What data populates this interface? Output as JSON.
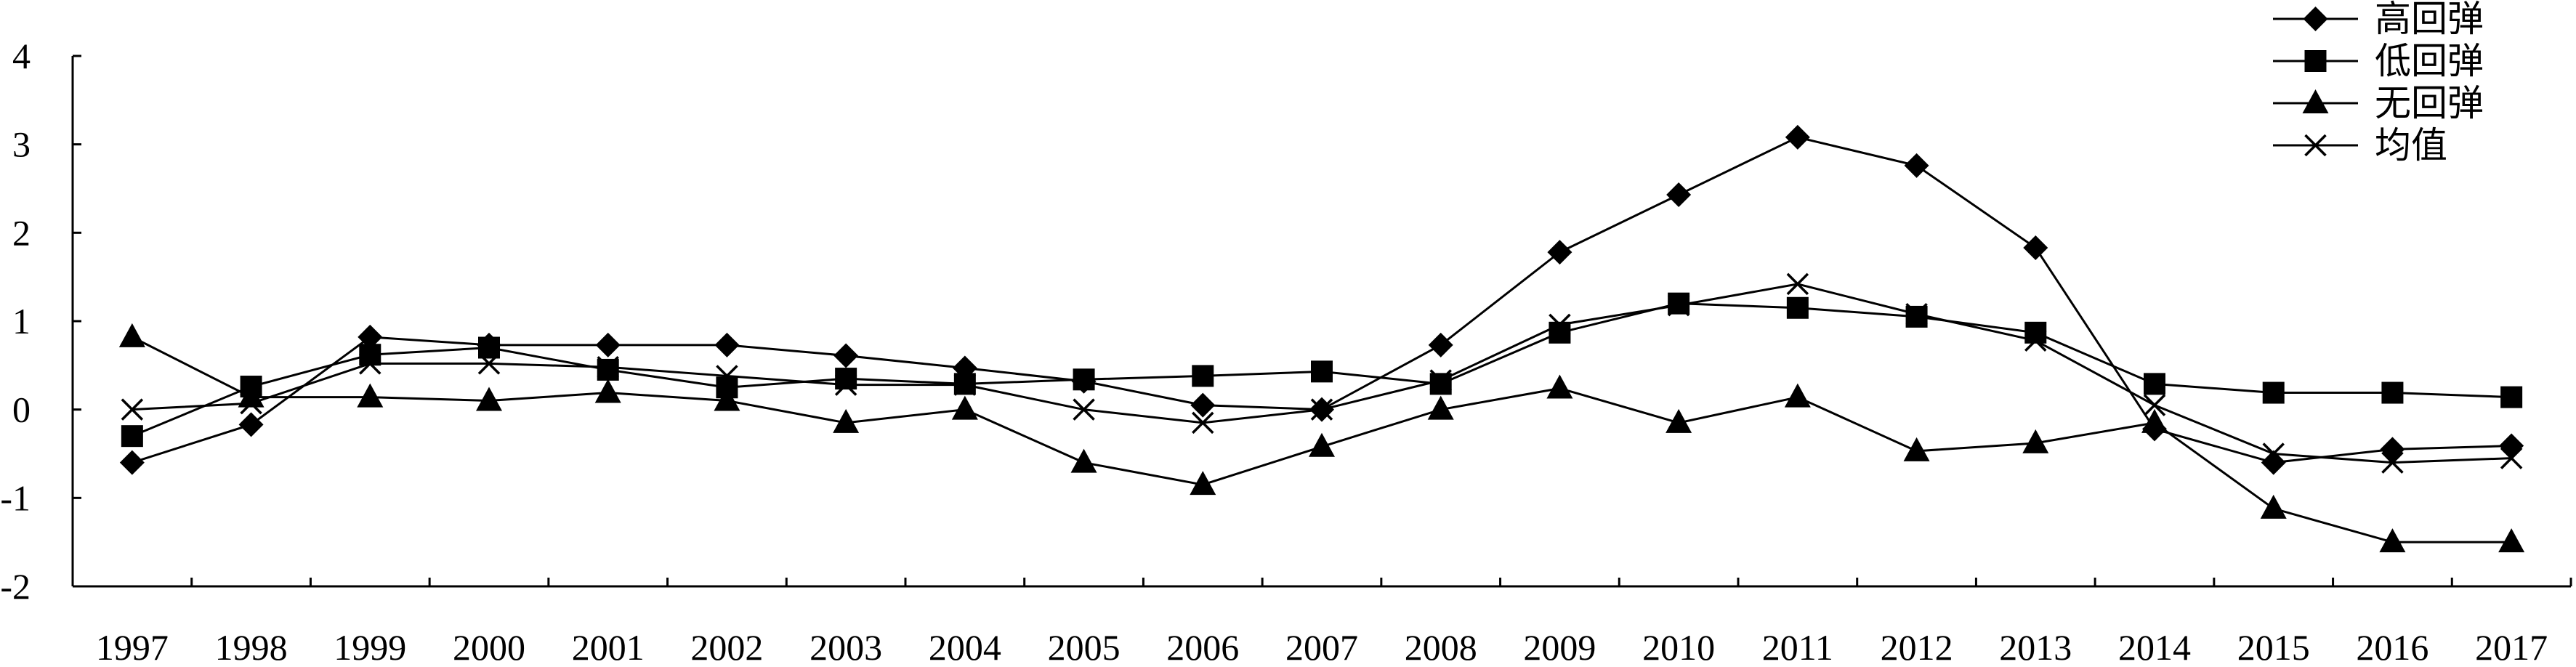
{
  "chart_data": {
    "type": "line",
    "title": "",
    "xlabel": "",
    "ylabel": "",
    "categories": [
      "1997",
      "1998",
      "1999",
      "2000",
      "2001",
      "2002",
      "2003",
      "2004",
      "2005",
      "2006",
      "2007",
      "2008",
      "2009",
      "2010",
      "2011",
      "2012",
      "2013",
      "2014",
      "2015",
      "2016",
      "2017"
    ],
    "ylim": [
      -2,
      4
    ],
    "yticks": [
      4,
      3,
      2,
      1,
      0,
      -1,
      -2
    ],
    "ytick_labels": [
      "4",
      "3",
      "2",
      "1",
      "0",
      "-1",
      "-2"
    ],
    "grid": false,
    "legend_position": "top-right",
    "series": [
      {
        "name": "高回弹",
        "marker": "diamond",
        "values": [
          -0.6,
          -0.17,
          0.82,
          0.73,
          0.73,
          0.73,
          0.61,
          0.47,
          0.32,
          0.05,
          0.0,
          0.73,
          1.78,
          2.43,
          3.08,
          2.76,
          1.83,
          -0.22,
          -0.6,
          -0.45,
          -0.41
        ]
      },
      {
        "name": "低回弹",
        "marker": "square",
        "values": [
          -0.3,
          0.26,
          0.62,
          0.7,
          0.45,
          0.25,
          0.35,
          0.29,
          0.34,
          0.38,
          0.43,
          0.29,
          0.87,
          1.2,
          1.15,
          1.05,
          0.87,
          0.29,
          0.19,
          0.19,
          0.14
        ]
      },
      {
        "name": "无回弹",
        "marker": "triangle",
        "values": [
          0.82,
          0.14,
          0.14,
          0.1,
          0.19,
          0.1,
          -0.15,
          0.0,
          -0.6,
          -0.85,
          -0.42,
          0.0,
          0.24,
          -0.15,
          0.14,
          -0.47,
          -0.38,
          -0.15,
          -1.12,
          -1.5,
          -1.5
        ]
      },
      {
        "name": "均值",
        "marker": "x",
        "values": [
          0.0,
          0.07,
          0.52,
          0.52,
          0.48,
          0.38,
          0.28,
          0.28,
          0.0,
          -0.15,
          0.0,
          0.33,
          0.96,
          1.18,
          1.42,
          1.08,
          0.78,
          0.05,
          -0.5,
          -0.6,
          -0.55
        ]
      }
    ]
  }
}
